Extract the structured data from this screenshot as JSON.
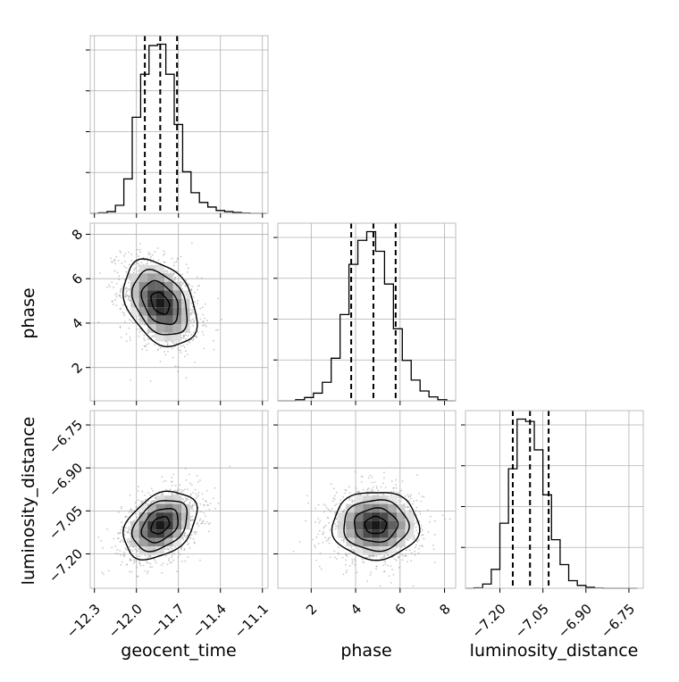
{
  "chart_data": {
    "type": "corner",
    "parameters": [
      "geocent_time",
      "phase",
      "luminosity_distance"
    ],
    "axis_labels": {
      "x": [
        "geocent_time",
        "phase",
        "luminosity_distance"
      ],
      "y": [
        "",
        "phase",
        "luminosity_distance"
      ]
    },
    "ranges": {
      "geocent_time": [
        -12.33,
        -11.06
      ],
      "phase": [
        0.5,
        8.5
      ],
      "luminosity_distance": [
        -7.32,
        -6.7
      ]
    },
    "ticks": {
      "geocent_time": [
        -12.3,
        -12.0,
        -11.7,
        -11.4,
        -11.1
      ],
      "phase": [
        2,
        4,
        6,
        8
      ],
      "luminosity_distance": [
        -7.2,
        -7.05,
        -6.9,
        -6.75
      ]
    },
    "tick_labels": {
      "geocent_time": [
        "−12.3",
        "−12.0",
        "−11.7",
        "−11.4",
        "−11.1"
      ],
      "phase": [
        "2",
        "4",
        "6",
        "8"
      ],
      "luminosity_distance": [
        "−7.20",
        "−7.05",
        "−6.90",
        "−6.75"
      ]
    },
    "grid": true,
    "histograms": {
      "geocent_time": {
        "bin_edges": [
          -12.33,
          -12.27,
          -12.21,
          -12.15,
          -12.09,
          -12.03,
          -11.97,
          -11.91,
          -11.85,
          -11.79,
          -11.73,
          -11.67,
          -11.61,
          -11.55,
          -11.49,
          -11.43,
          -11.37,
          -11.31,
          -11.25,
          -11.19,
          -11.13,
          -11.07
        ],
        "counts": [
          0,
          2,
          6,
          28,
          120,
          335,
          485,
          585,
          590,
          485,
          310,
          145,
          72,
          38,
          22,
          10,
          6,
          3,
          1,
          0,
          0
        ],
        "quantile_lines": [
          -11.94,
          -11.83,
          -11.71
        ]
      },
      "phase": {
        "bin_edges": [
          0.5,
          0.9,
          1.3,
          1.7,
          2.1,
          2.5,
          2.9,
          3.3,
          3.7,
          4.1,
          4.5,
          4.9,
          5.3,
          5.7,
          6.1,
          6.5,
          6.9,
          7.3,
          7.7,
          8.1,
          8.5
        ],
        "counts": [
          0,
          0,
          5,
          15,
          35,
          85,
          195,
          395,
          625,
          735,
          775,
          685,
          535,
          330,
          185,
          95,
          45,
          18,
          5,
          0
        ],
        "quantile_lines": [
          3.8,
          4.8,
          5.8
        ]
      },
      "luminosity_distance": {
        "bin_edges": [
          -7.32,
          -7.29,
          -7.26,
          -7.23,
          -7.2,
          -7.17,
          -7.14,
          -7.11,
          -7.08,
          -7.05,
          -7.02,
          -6.99,
          -6.96,
          -6.93,
          -6.9,
          -6.87,
          -6.84,
          -6.81,
          -6.78,
          -6.75,
          -6.72
        ],
        "counts": [
          0,
          2,
          18,
          80,
          275,
          505,
          715,
          705,
          585,
          395,
          205,
          100,
          32,
          12,
          4,
          1,
          0,
          0,
          0,
          0
        ],
        "quantile_lines": [
          -7.155,
          -7.095,
          -7.03
        ]
      }
    },
    "scatter_pairs": [
      {
        "x": "geocent_time",
        "y": "phase",
        "center": [
          -11.83,
          4.9
        ],
        "correlation": -0.35,
        "contour_levels_sigma": [
          0.5,
          1.0,
          1.5,
          2.0
        ],
        "mode_cell": [
          -11.82,
          5.0
        ]
      },
      {
        "x": "geocent_time",
        "y": "luminosity_distance",
        "center": [
          -11.83,
          -7.1
        ],
        "correlation": 0.35,
        "contour_levels_sigma": [
          0.5,
          1.0,
          1.5,
          2.0
        ],
        "mode_cell": [
          -11.83,
          -7.11
        ]
      },
      {
        "x": "phase",
        "y": "luminosity_distance",
        "center": [
          4.9,
          -7.1
        ],
        "correlation": 0.0,
        "contour_levels_sigma": [
          0.5,
          1.0,
          1.5,
          2.0
        ],
        "mode_cell": [
          5.0,
          -7.11
        ]
      }
    ],
    "colors": {
      "line": "#000000",
      "scatter": "#9a9a9a",
      "grid": "#b0b0b0",
      "frame": "#bcbcbc"
    }
  }
}
